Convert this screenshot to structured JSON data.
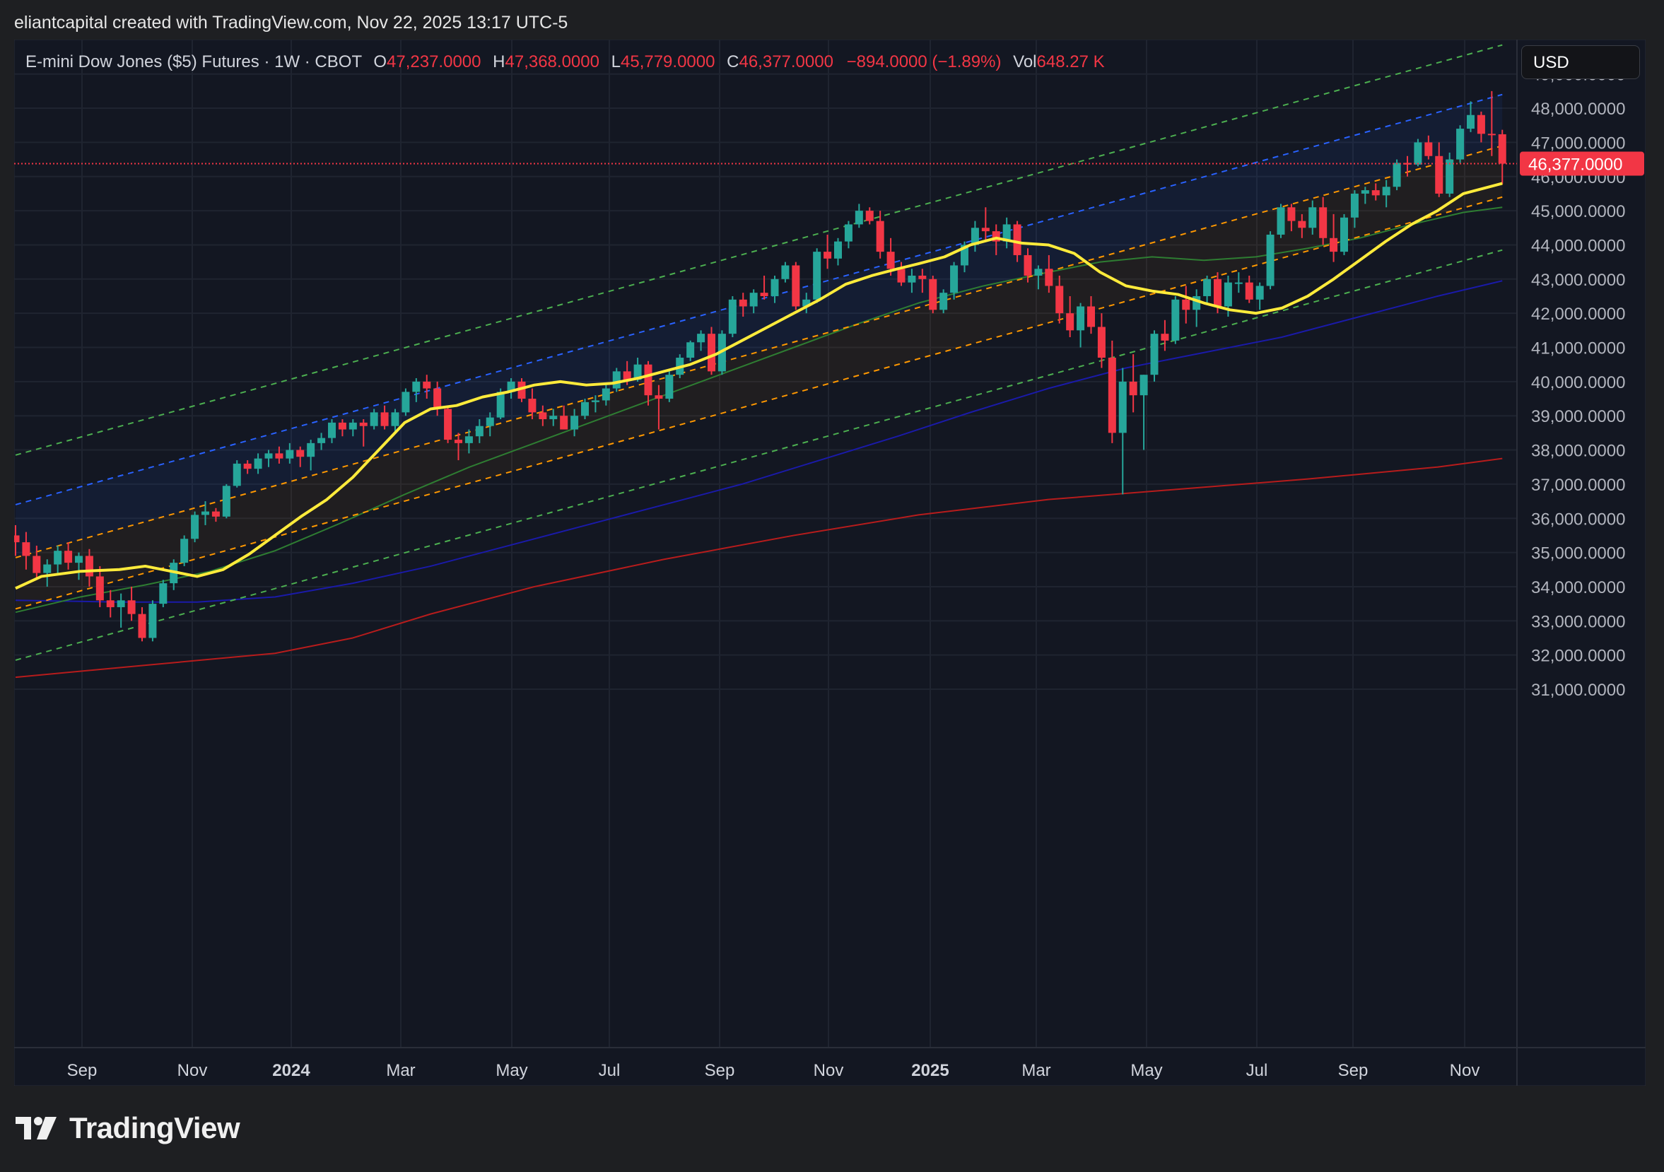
{
  "attribution": "eliantcapital created with TradingView.com, Nov 22, 2025 13:17 UTC-5",
  "brand": {
    "name": "TradingView",
    "logo_icon": "tradingview-logo-icon"
  },
  "legend": {
    "symbol": "E-mini Dow Jones ($5) Futures · 1W · CBOT",
    "open_label": "O",
    "open": "47,237.0000",
    "high_label": "H",
    "high": "47,368.0000",
    "low_label": "L",
    "low": "45,779.0000",
    "close_label": "C",
    "close": "46,377.0000",
    "change": "−894.0000 (−1.89%)",
    "vol_label": "Vol",
    "vol": "648.27 K"
  },
  "currency": "USD",
  "colors": {
    "background": "#131722",
    "up": "#26a69a",
    "down": "#f23645",
    "ma20": "#ffeb3b",
    "ma50": "#2e7d32",
    "ma100": "#1a1aa8",
    "ma200": "#b71c1c",
    "channel_upper": "#2962ff",
    "channel_mid": "#ff9800",
    "channel_outer": "#4caf50"
  },
  "chart_data": {
    "type": "candlestick",
    "ylim": [
      30800,
      49800
    ],
    "xlim": [
      0,
      115
    ],
    "y_ticks": [
      "31,000.0000",
      "32,000.0000",
      "33,000.0000",
      "34,000.0000",
      "35,000.0000",
      "36,000.0000",
      "37,000.0000",
      "38,000.0000",
      "39,000.0000",
      "40,000.0000",
      "41,000.0000",
      "42,000.0000",
      "43,000.0000",
      "44,000.0000",
      "45,000.0000",
      "46,000.0000",
      "47,000.0000",
      "48,000.0000",
      "49,000.0000"
    ],
    "y_tick_values": [
      31000,
      32000,
      33000,
      34000,
      35000,
      36000,
      37000,
      38000,
      39000,
      40000,
      41000,
      42000,
      43000,
      44000,
      45000,
      46000,
      47000,
      48000,
      49000
    ],
    "x_ticks": [
      {
        "label": "Sep",
        "week": 5,
        "bold": false
      },
      {
        "label": "Nov",
        "week": 14,
        "bold": false
      },
      {
        "label": "2024",
        "week": 22,
        "bold": true
      },
      {
        "label": "Mar",
        "week": 31,
        "bold": false
      },
      {
        "label": "May",
        "week": 40,
        "bold": false
      },
      {
        "label": "Jul",
        "week": 48,
        "bold": false
      },
      {
        "label": "Sep",
        "week": 57,
        "bold": false
      },
      {
        "label": "Nov",
        "week": 66,
        "bold": false
      },
      {
        "label": "2025",
        "week": 74,
        "bold": true
      },
      {
        "label": "Mar",
        "week": 83,
        "bold": false
      },
      {
        "label": "May",
        "week": 92,
        "bold": false
      },
      {
        "label": "Jul",
        "week": 101,
        "bold": false
      },
      {
        "label": "Sep",
        "week": 109,
        "bold": false
      },
      {
        "label": "Nov",
        "week": 118,
        "bold": false
      }
    ],
    "last_price": 46377,
    "last_price_label": "46,377.0000",
    "candles": [
      [
        35500,
        35800,
        34900,
        35300
      ],
      [
        35300,
        35600,
        34500,
        34900
      ],
      [
        34900,
        35200,
        34200,
        34400
      ],
      [
        34400,
        34800,
        34000,
        34650
      ],
      [
        34650,
        35200,
        34400,
        35050
      ],
      [
        35050,
        35300,
        34500,
        34700
      ],
      [
        34700,
        35000,
        34200,
        34900
      ],
      [
        34900,
        35100,
        34000,
        34300
      ],
      [
        34300,
        34600,
        33400,
        33600
      ],
      [
        33600,
        33900,
        33100,
        33400
      ],
      [
        33400,
        33800,
        32800,
        33600
      ],
      [
        33600,
        34000,
        33000,
        33200
      ],
      [
        33200,
        33400,
        32400,
        32500
      ],
      [
        32500,
        33600,
        32400,
        33500
      ],
      [
        33500,
        34200,
        33400,
        34100
      ],
      [
        34100,
        34800,
        33900,
        34700
      ],
      [
        34700,
        35500,
        34600,
        35400
      ],
      [
        35400,
        36200,
        35300,
        36100
      ],
      [
        36100,
        36500,
        35800,
        36200
      ],
      [
        36200,
        36300,
        35900,
        36050
      ],
      [
        36050,
        37000,
        36000,
        36950
      ],
      [
        36950,
        37700,
        36900,
        37600
      ],
      [
        37600,
        37700,
        37300,
        37450
      ],
      [
        37450,
        37900,
        37300,
        37750
      ],
      [
        37750,
        38000,
        37500,
        37900
      ],
      [
        37900,
        38100,
        37600,
        37750
      ],
      [
        37750,
        38200,
        37600,
        38000
      ],
      [
        38000,
        38100,
        37500,
        37800
      ],
      [
        37800,
        38300,
        37400,
        38200
      ],
      [
        38200,
        38500,
        38000,
        38350
      ],
      [
        38350,
        38900,
        38200,
        38800
      ],
      [
        38800,
        38900,
        38400,
        38600
      ],
      [
        38600,
        38900,
        38400,
        38800
      ],
      [
        38800,
        38900,
        38100,
        38700
      ],
      [
        38700,
        39200,
        38600,
        39100
      ],
      [
        39100,
        39300,
        38600,
        38700
      ],
      [
        38700,
        39200,
        38500,
        39100
      ],
      [
        39100,
        39800,
        39000,
        39700
      ],
      [
        39700,
        40100,
        39400,
        40000
      ],
      [
        40000,
        40200,
        39500,
        39800
      ],
      [
        39800,
        40000,
        39000,
        39200
      ],
      [
        39200,
        39300,
        38200,
        38300
      ],
      [
        38300,
        38500,
        37700,
        38200
      ],
      [
        38200,
        38600,
        37900,
        38400
      ],
      [
        38400,
        38900,
        38200,
        38700
      ],
      [
        38700,
        39100,
        38400,
        38950
      ],
      [
        38950,
        39800,
        38900,
        39700
      ],
      [
        39700,
        40100,
        39500,
        40000
      ],
      [
        40000,
        40100,
        39400,
        39500
      ],
      [
        39500,
        39800,
        38900,
        39100
      ],
      [
        39100,
        39300,
        38700,
        38900
      ],
      [
        38900,
        39200,
        38700,
        39000
      ],
      [
        39000,
        39300,
        38700,
        38600
      ],
      [
        38600,
        39200,
        38400,
        39000
      ],
      [
        39000,
        39500,
        38900,
        39400
      ],
      [
        39400,
        39600,
        39100,
        39450
      ],
      [
        39450,
        39900,
        39300,
        39800
      ],
      [
        39800,
        40400,
        39700,
        40300
      ],
      [
        40300,
        40600,
        39900,
        40050
      ],
      [
        40050,
        40700,
        40000,
        40500
      ],
      [
        40500,
        40600,
        39300,
        39600
      ],
      [
        39600,
        39900,
        38600,
        39500
      ],
      [
        39500,
        40300,
        39400,
        40200
      ],
      [
        40200,
        40800,
        40100,
        40700
      ],
      [
        40700,
        41200,
        40600,
        41150
      ],
      [
        41150,
        41500,
        40900,
        41400
      ],
      [
        41400,
        41600,
        40200,
        40300
      ],
      [
        40300,
        41500,
        40200,
        41400
      ],
      [
        41400,
        42500,
        41300,
        42400
      ],
      [
        42400,
        42600,
        41900,
        42200
      ],
      [
        42200,
        42700,
        42000,
        42600
      ],
      [
        42600,
        43100,
        42400,
        42500
      ],
      [
        42500,
        43100,
        42300,
        43000
      ],
      [
        43000,
        43500,
        42900,
        43400
      ],
      [
        43400,
        43500,
        42100,
        42200
      ],
      [
        42200,
        42600,
        42000,
        42400
      ],
      [
        42400,
        43900,
        42300,
        43800
      ],
      [
        43800,
        44300,
        43300,
        43600
      ],
      [
        43600,
        44200,
        43400,
        44100
      ],
      [
        44100,
        44700,
        43900,
        44600
      ],
      [
        44600,
        45200,
        44500,
        45000
      ],
      [
        45000,
        45100,
        44600,
        44700
      ],
      [
        44700,
        45000,
        43600,
        43800
      ],
      [
        43800,
        44200,
        43100,
        43300
      ],
      [
        43300,
        43500,
        42800,
        42900
      ],
      [
        42900,
        43300,
        42600,
        43100
      ],
      [
        43100,
        43300,
        42600,
        43000
      ],
      [
        43000,
        43100,
        42000,
        42100
      ],
      [
        42100,
        42700,
        42000,
        42600
      ],
      [
        42600,
        43500,
        42400,
        43400
      ],
      [
        43400,
        44100,
        43200,
        44000
      ],
      [
        44000,
        44700,
        43800,
        44500
      ],
      [
        44500,
        45100,
        44100,
        44400
      ],
      [
        44400,
        44600,
        43700,
        44100
      ],
      [
        44100,
        44800,
        43900,
        44600
      ],
      [
        44600,
        44700,
        43500,
        43700
      ],
      [
        43700,
        43900,
        42900,
        43100
      ],
      [
        43100,
        43400,
        42700,
        43300
      ],
      [
        43300,
        43700,
        42600,
        42800
      ],
      [
        42800,
        43100,
        41700,
        42000
      ],
      [
        42000,
        42500,
        41300,
        41500
      ],
      [
        41500,
        42300,
        41000,
        42200
      ],
      [
        42200,
        42500,
        41400,
        41600
      ],
      [
        41600,
        42000,
        40400,
        40700
      ],
      [
        40700,
        41200,
        38200,
        38500
      ],
      [
        38500,
        40400,
        36700,
        40000
      ],
      [
        40000,
        40800,
        39100,
        39600
      ],
      [
        39600,
        40200,
        38000,
        40200
      ],
      [
        40200,
        41500,
        40000,
        41400
      ],
      [
        41400,
        41800,
        40900,
        41200
      ],
      [
        41200,
        42500,
        41100,
        42400
      ],
      [
        42400,
        42800,
        41700,
        42100
      ],
      [
        42100,
        42700,
        41600,
        42500
      ],
      [
        42500,
        43100,
        42300,
        43000
      ],
      [
        43000,
        43200,
        42000,
        42200
      ],
      [
        42200,
        43100,
        41900,
        42900
      ],
      [
        42900,
        43200,
        42600,
        42900
      ]
    ],
    "candles_continued": [
      [
        42900,
        43100,
        42300,
        42400
      ],
      [
        42400,
        42900,
        42100,
        42800
      ],
      [
        42800,
        44400,
        42700,
        44300
      ],
      [
        44300,
        45200,
        44200,
        45100
      ],
      [
        45100,
        45200,
        44400,
        44700
      ],
      [
        44700,
        44900,
        44200,
        44500
      ],
      [
        44500,
        45300,
        44300,
        45100
      ],
      [
        45100,
        45400,
        44000,
        44200
      ],
      [
        44200,
        44900,
        43500,
        43800
      ],
      [
        43800,
        44900,
        43700,
        44800
      ],
      [
        44800,
        45600,
        44500,
        45500
      ],
      [
        45500,
        45700,
        45200,
        45600
      ],
      [
        45600,
        45800,
        45300,
        45450
      ],
      [
        45450,
        45900,
        45100,
        45700
      ],
      [
        45700,
        46500,
        45600,
        46400
      ],
      [
        46400,
        46600,
        46000,
        46350
      ],
      [
        46350,
        47100,
        46300,
        47000
      ],
      [
        47000,
        47200,
        46500,
        46600
      ],
      [
        46600,
        47000,
        45400,
        45500
      ],
      [
        45500,
        46700,
        45400,
        46500
      ],
      [
        46500,
        47500,
        46400,
        47400
      ],
      [
        47400,
        48200,
        47300,
        47800
      ],
      [
        47800,
        47900,
        47000,
        47250
      ],
      [
        47250,
        48500,
        46600,
        47237
      ],
      [
        47237,
        47368,
        45779,
        46377
      ]
    ],
    "ma20": [
      [
        0,
        33950
      ],
      [
        2,
        34300
      ],
      [
        5,
        34450
      ],
      [
        8,
        34500
      ],
      [
        10,
        34600
      ],
      [
        12,
        34450
      ],
      [
        14,
        34300
      ],
      [
        16,
        34500
      ],
      [
        18,
        34950
      ],
      [
        20,
        35500
      ],
      [
        22,
        36050
      ],
      [
        24,
        36550
      ],
      [
        26,
        37200
      ],
      [
        28,
        38000
      ],
      [
        30,
        38800
      ],
      [
        32,
        39200
      ],
      [
        34,
        39300
      ],
      [
        36,
        39550
      ],
      [
        38,
        39700
      ],
      [
        40,
        39900
      ],
      [
        42,
        40000
      ],
      [
        44,
        39900
      ],
      [
        46,
        39950
      ],
      [
        48,
        40100
      ],
      [
        50,
        40300
      ],
      [
        52,
        40500
      ],
      [
        54,
        40800
      ],
      [
        56,
        41200
      ],
      [
        58,
        41600
      ],
      [
        60,
        42000
      ],
      [
        62,
        42400
      ],
      [
        64,
        42850
      ],
      [
        66,
        43100
      ],
      [
        68,
        43300
      ],
      [
        70,
        43450
      ],
      [
        72,
        43650
      ],
      [
        74,
        44000
      ],
      [
        76,
        44200
      ],
      [
        78,
        44050
      ],
      [
        80,
        44000
      ],
      [
        82,
        43750
      ],
      [
        84,
        43200
      ],
      [
        86,
        42800
      ],
      [
        88,
        42650
      ],
      [
        90,
        42550
      ],
      [
        92,
        42300
      ],
      [
        94,
        42100
      ],
      [
        96,
        42000
      ],
      [
        98,
        42150
      ],
      [
        100,
        42500
      ],
      [
        102,
        43000
      ],
      [
        104,
        43550
      ],
      [
        106,
        44100
      ],
      [
        108,
        44600
      ],
      [
        110,
        45000
      ],
      [
        112,
        45500
      ],
      [
        114,
        45700
      ],
      [
        115,
        45800
      ]
    ],
    "ma50": [
      [
        0,
        33250
      ],
      [
        5,
        33700
      ],
      [
        10,
        34050
      ],
      [
        15,
        34450
      ],
      [
        20,
        35050
      ],
      [
        25,
        35850
      ],
      [
        30,
        36700
      ],
      [
        35,
        37500
      ],
      [
        40,
        38200
      ],
      [
        45,
        38900
      ],
      [
        50,
        39600
      ],
      [
        55,
        40300
      ],
      [
        60,
        41000
      ],
      [
        65,
        41700
      ],
      [
        70,
        42300
      ],
      [
        75,
        42800
      ],
      [
        80,
        43200
      ],
      [
        84,
        43500
      ],
      [
        88,
        43650
      ],
      [
        92,
        43550
      ],
      [
        96,
        43650
      ],
      [
        100,
        43900
      ],
      [
        104,
        44200
      ],
      [
        108,
        44600
      ],
      [
        112,
        44950
      ],
      [
        115,
        45100
      ]
    ],
    "ma100": [
      [
        0,
        33600
      ],
      [
        8,
        33550
      ],
      [
        14,
        33550
      ],
      [
        20,
        33700
      ],
      [
        26,
        34100
      ],
      [
        32,
        34600
      ],
      [
        38,
        35200
      ],
      [
        44,
        35800
      ],
      [
        50,
        36400
      ],
      [
        56,
        37000
      ],
      [
        62,
        37700
      ],
      [
        68,
        38400
      ],
      [
        74,
        39100
      ],
      [
        80,
        39800
      ],
      [
        86,
        40400
      ],
      [
        92,
        40850
      ],
      [
        98,
        41300
      ],
      [
        104,
        41900
      ],
      [
        110,
        42500
      ],
      [
        115,
        42950
      ]
    ],
    "ma200": [
      [
        0,
        31350
      ],
      [
        10,
        31700
      ],
      [
        20,
        32050
      ],
      [
        26,
        32500
      ],
      [
        32,
        33200
      ],
      [
        40,
        34000
      ],
      [
        50,
        34800
      ],
      [
        60,
        35500
      ],
      [
        70,
        36100
      ],
      [
        80,
        36550
      ],
      [
        90,
        36850
      ],
      [
        100,
        37150
      ],
      [
        110,
        37500
      ],
      [
        115,
        37750
      ]
    ],
    "channels": [
      {
        "name": "upper",
        "color": "channel_upper",
        "from": [
          0,
          36400
        ],
        "to": [
          115,
          48400
        ]
      },
      {
        "name": "mid",
        "color": "channel_mid",
        "from": [
          0,
          34850
        ],
        "to": [
          115,
          46900
        ]
      },
      {
        "name": "lower",
        "color": "channel_mid",
        "from": [
          0,
          33350
        ],
        "to": [
          115,
          45400
        ]
      },
      {
        "name": "outer-top",
        "color": "channel_outer",
        "from": [
          0,
          37850
        ],
        "to": [
          115,
          49850
        ]
      },
      {
        "name": "outer-bottom",
        "color": "channel_outer",
        "from": [
          0,
          31850
        ],
        "to": [
          115,
          43850
        ]
      }
    ]
  }
}
